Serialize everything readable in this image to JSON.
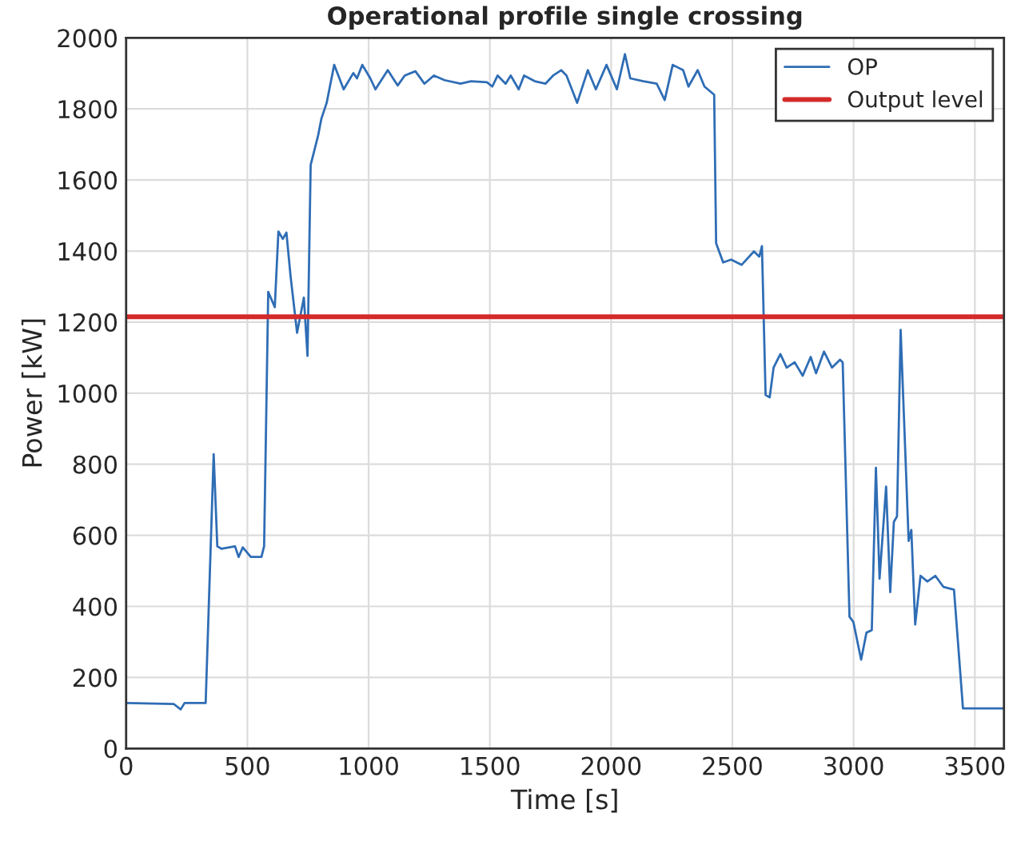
{
  "chart_data": {
    "type": "line",
    "title": "Operational profile single crossing",
    "xlabel": "Time [s]",
    "ylabel": "Power [kW]",
    "xlim": [
      0,
      3620
    ],
    "ylim": [
      0,
      2000
    ],
    "xticks": [
      0,
      500,
      1000,
      1500,
      2000,
      2500,
      3000,
      3500
    ],
    "yticks": [
      0,
      200,
      400,
      600,
      800,
      1000,
      1200,
      1400,
      1600,
      1800,
      2000
    ],
    "grid": true,
    "legend": "top right",
    "series": [
      {
        "name": "OP",
        "color": "#2f6db5",
        "x": [
          0,
          197,
          225,
          241,
          328,
          361,
          376,
          394,
          449,
          464,
          481,
          514,
          558,
          569,
          586,
          613,
          628,
          646,
          661,
          678,
          705,
          733,
          748,
          761,
          792,
          805,
          827,
          858,
          897,
          937,
          952,
          974,
          1007,
          1028,
          1079,
          1120,
          1149,
          1193,
          1230,
          1269,
          1313,
          1379,
          1422,
          1488,
          1510,
          1532,
          1565,
          1586,
          1619,
          1641,
          1685,
          1729,
          1761,
          1794,
          1816,
          1860,
          1904,
          1937,
          1981,
          2024,
          2057,
          2079,
          2133,
          2188,
          2221,
          2254,
          2297,
          2319,
          2357,
          2385,
          2425,
          2433,
          2462,
          2495,
          2538,
          2589,
          2611,
          2622,
          2637,
          2654,
          2670,
          2698,
          2724,
          2757,
          2790,
          2823,
          2845,
          2878,
          2911,
          2944,
          2955,
          2983,
          2999,
          3031,
          3053,
          3075,
          3092,
          3107,
          3134,
          3151,
          3166,
          3179,
          3194,
          3227,
          3238,
          3254,
          3276,
          3304,
          3337,
          3370,
          3414,
          3451,
          3620
        ],
        "values": [
          128,
          125,
          110,
          128,
          128,
          828,
          569,
          562,
          569,
          539,
          566,
          539,
          539,
          569,
          1285,
          1242,
          1455,
          1434,
          1452,
          1330,
          1170,
          1269,
          1105,
          1642,
          1726,
          1772,
          1817,
          1924,
          1855,
          1901,
          1886,
          1924,
          1886,
          1855,
          1909,
          1866,
          1894,
          1906,
          1871,
          1894,
          1881,
          1871,
          1878,
          1875,
          1863,
          1894,
          1871,
          1894,
          1855,
          1894,
          1878,
          1871,
          1894,
          1909,
          1894,
          1817,
          1909,
          1855,
          1924,
          1855,
          1954,
          1886,
          1878,
          1871,
          1825,
          1924,
          1909,
          1863,
          1909,
          1863,
          1840,
          1422,
          1368,
          1376,
          1361,
          1399,
          1384,
          1414,
          995,
          988,
          1072,
          1110,
          1072,
          1087,
          1049,
          1102,
          1056,
          1117,
          1072,
          1094,
          1087,
          371,
          356,
          250,
          326,
          333,
          790,
          478,
          737,
          440,
          638,
          653,
          1178,
          584,
          615,
          349,
          486,
          470,
          486,
          455,
          447,
          113,
          113
        ]
      }
    ],
    "ref_lines": [
      {
        "axis": "y",
        "value": 1215,
        "label": "Output level",
        "color": "#d42a2a"
      }
    ]
  }
}
